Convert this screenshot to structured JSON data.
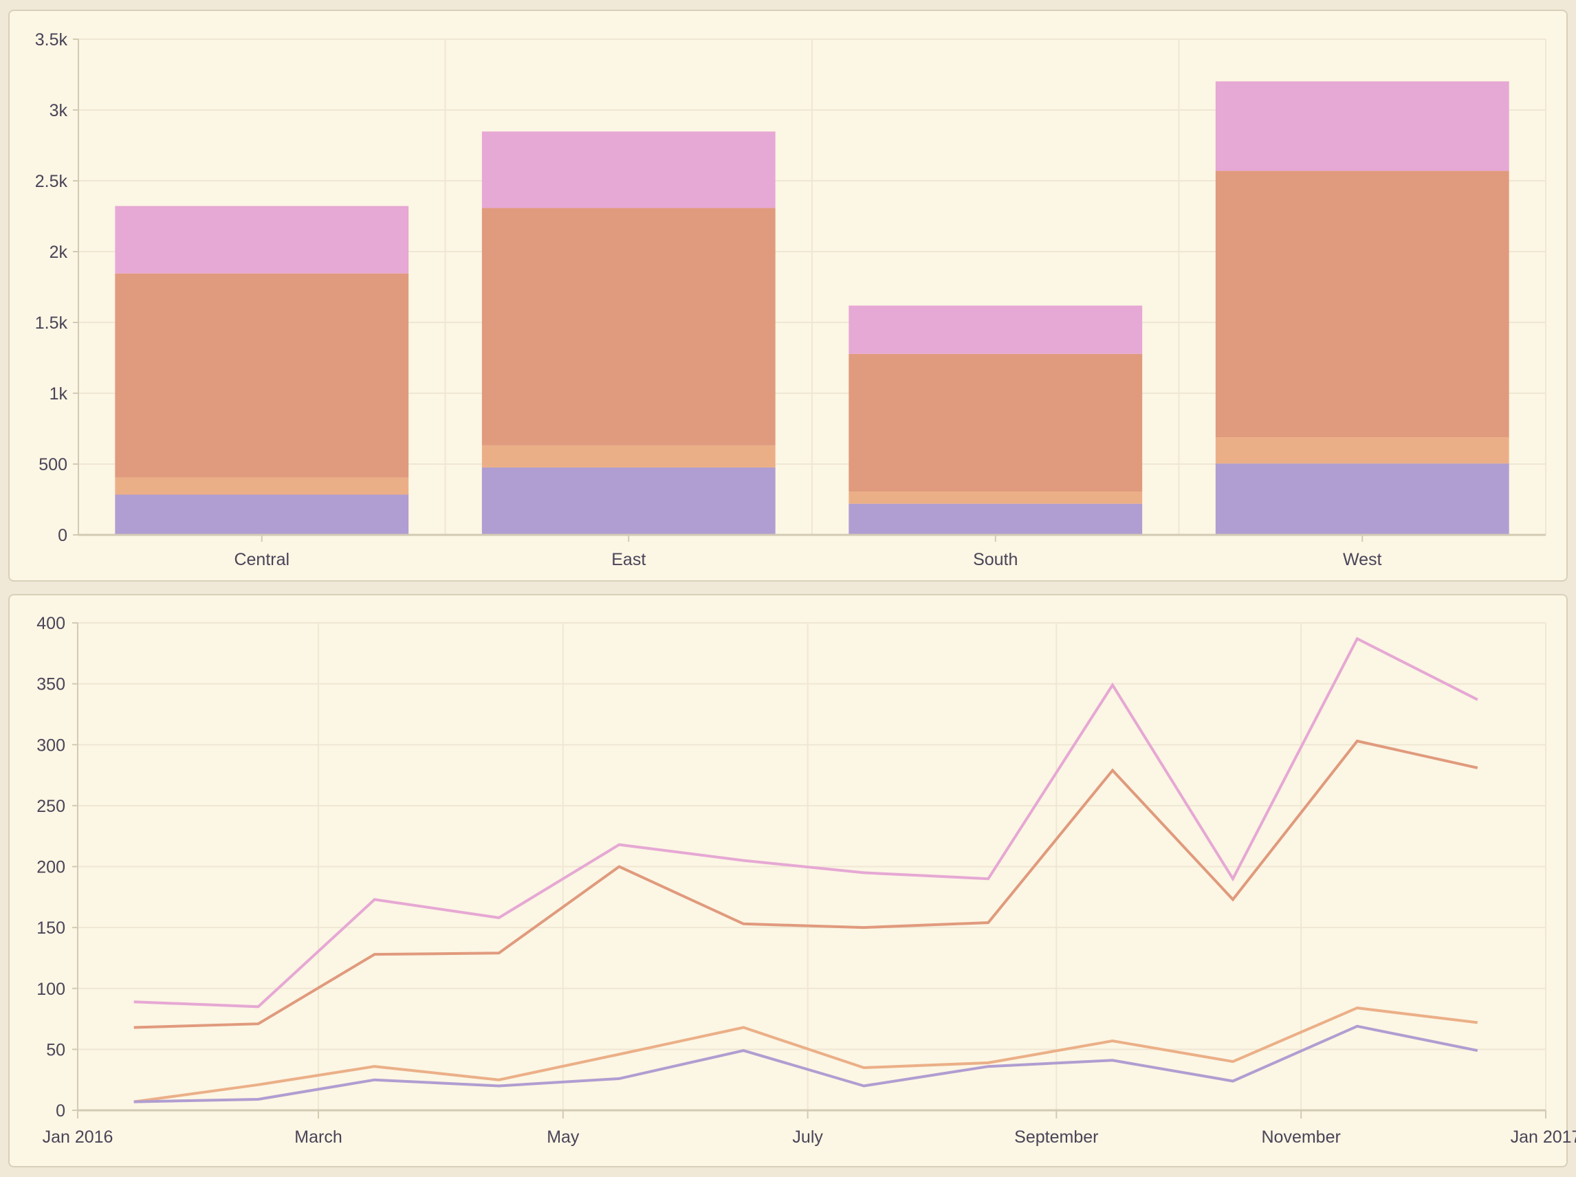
{
  "chart_data": [
    {
      "type": "bar",
      "stacked": true,
      "categories": [
        "Central",
        "East",
        "South",
        "West"
      ],
      "series": [
        {
          "color": "#b09dd1",
          "values": [
            284,
            476,
            220,
            504
          ]
        },
        {
          "color": "#ebaf87",
          "values": [
            121,
            156,
            85,
            185
          ]
        },
        {
          "color": "#e09a7d",
          "values": [
            1441,
            1676,
            973,
            1881
          ]
        },
        {
          "color": "#e6a8d4",
          "values": [
            476,
            540,
            341,
            632
          ]
        }
      ],
      "ylim": [
        0,
        3500
      ],
      "yticks": [
        0,
        500,
        1000,
        1500,
        2000,
        2500,
        3000,
        3500
      ],
      "ytick_labels": [
        "0",
        "500",
        "1k",
        "1.5k",
        "2k",
        "2.5k",
        "3k",
        "3.5k"
      ],
      "grid": true,
      "legend": "none"
    },
    {
      "type": "line",
      "x": [
        "2016-01-15",
        "2016-02-15",
        "2016-03-15",
        "2016-04-15",
        "2016-05-15",
        "2016-06-15",
        "2016-07-15",
        "2016-08-15",
        "2016-09-15",
        "2016-10-15",
        "2016-11-15",
        "2016-12-15"
      ],
      "series": [
        {
          "color": "#e6a8d4",
          "values": [
            89,
            85,
            173,
            158,
            218,
            205,
            195,
            190,
            349,
            190,
            387,
            337
          ]
        },
        {
          "color": "#e09a7d",
          "values": [
            68,
            71,
            128,
            129,
            200,
            153,
            150,
            154,
            279,
            173,
            303,
            281
          ]
        },
        {
          "color": "#ebaf87",
          "values": [
            7,
            21,
            36,
            25,
            46,
            68,
            35,
            39,
            57,
            40,
            84,
            72
          ]
        },
        {
          "color": "#b09dd1",
          "values": [
            7,
            9,
            25,
            20,
            26,
            49,
            20,
            36,
            41,
            24,
            69,
            49
          ]
        }
      ],
      "xlim": [
        "2016-01-01",
        "2017-01-01"
      ],
      "xticks": [
        "2016-01-01",
        "2016-03-01",
        "2016-05-01",
        "2016-07-01",
        "2016-09-01",
        "2016-11-01",
        "2017-01-01"
      ],
      "xtick_labels": [
        "Jan 2016",
        "March",
        "May",
        "July",
        "September",
        "November",
        "Jan 2017"
      ],
      "ylim": [
        0,
        400
      ],
      "yticks": [
        0,
        50,
        100,
        150,
        200,
        250,
        300,
        350,
        400
      ],
      "ytick_labels": [
        "0",
        "50",
        "100",
        "150",
        "200",
        "250",
        "300",
        "350",
        "400"
      ],
      "grid": true,
      "legend": "none"
    }
  ]
}
